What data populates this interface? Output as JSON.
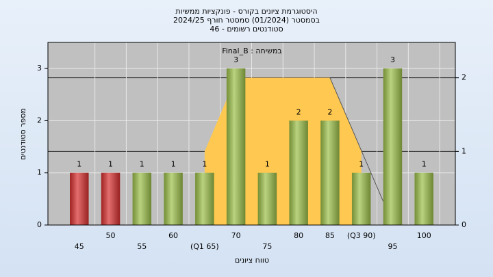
{
  "chart_data": {
    "type": "bar",
    "title": [
      "היסטוגרמת ציונים בקורס - פונקציות ממשיות",
      "בסמסטר  (01/2024)  סמסטר חורף 2024/25",
      "סטודנטים רשומים - 46"
    ],
    "annotation": "במשיחה : Final_B",
    "x_label": "טווח ציונים",
    "y_label": "מספר סטודנטים",
    "xlim": [
      40,
      105
    ],
    "ylim": [
      0,
      3.5
    ],
    "yticks": [
      0,
      1,
      2,
      3
    ],
    "y2lim": [
      0,
      2.48
    ],
    "y2ticks": [
      0,
      1,
      2
    ],
    "grid": true,
    "xticks": [
      45,
      50,
      55,
      60,
      {
        "value": 65,
        "label": "(Q1 65)"
      },
      70,
      75,
      80,
      85,
      {
        "value": 90,
        "label": "(Q3 90)"
      },
      95,
      100
    ],
    "x": [
      45,
      50,
      55,
      60,
      65,
      70,
      75,
      80,
      85,
      90,
      95,
      100
    ],
    "series": [
      {
        "type": "bar",
        "values": [
          1,
          1,
          1,
          1,
          1,
          3,
          1,
          2,
          2,
          1,
          3,
          1
        ],
        "colors": [
          "#d83030",
          "#d83030",
          "#9cc04a",
          "#9cc04a",
          "#9cc04a",
          "#9cc04a",
          "#9cc04a",
          "#9cc04a",
          "#9cc04a",
          "#9cc04a",
          "#9cc04a",
          "#9cc04a"
        ]
      },
      {
        "type": "area",
        "axis": "y2",
        "x": [
          65,
          70,
          85,
          90
        ],
        "values": [
          1,
          2,
          2,
          1
        ],
        "color": "#ffc850"
      },
      {
        "type": "line",
        "axis": "y2",
        "x": [
          85,
          93.5
        ],
        "values": [
          2,
          0.32
        ],
        "color": "#555555"
      }
    ]
  }
}
